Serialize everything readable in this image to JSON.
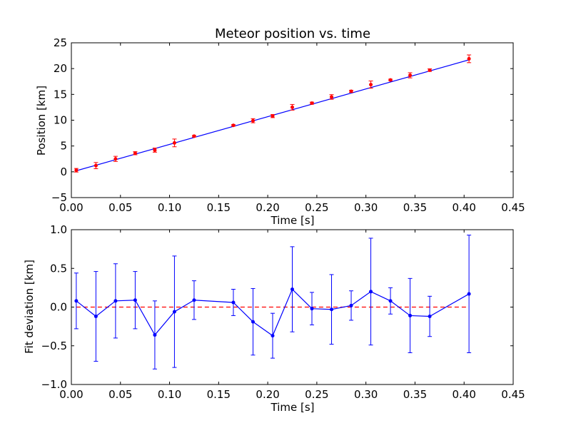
{
  "chart_data": [
    {
      "type": "scatter",
      "title": "Meteor position vs. time",
      "xlabel": "Time [s]",
      "ylabel": "Position [km]",
      "xlim": [
        0.0,
        0.45
      ],
      "ylim": [
        -5,
        25
      ],
      "xticks": [
        "0.00",
        "0.05",
        "0.10",
        "0.15",
        "0.20",
        "0.25",
        "0.30",
        "0.35",
        "0.40",
        "0.45"
      ],
      "yticks": [
        "−5",
        "0",
        "5",
        "10",
        "15",
        "20",
        "25"
      ],
      "grid": false,
      "colors": {
        "points": "#ff0000",
        "errorbars": "#ff0000",
        "fit_line": "#0000ff",
        "frame": "#000000"
      },
      "series": [
        {
          "x": [
            0.005,
            0.025,
            0.045,
            0.065,
            0.085,
            0.105,
            0.125,
            0.165,
            0.185,
            0.205,
            0.225,
            0.245,
            0.265,
            0.285,
            0.305,
            0.325,
            0.345,
            0.365,
            0.405
          ],
          "y": [
            0.3,
            1.2,
            2.5,
            3.6,
            4.2,
            5.6,
            6.9,
            9.0,
            9.9,
            10.8,
            12.5,
            13.3,
            14.5,
            15.6,
            16.9,
            17.8,
            18.7,
            19.7,
            21.9
          ],
          "yerr": [
            0.35,
            0.6,
            0.5,
            0.3,
            0.4,
            0.75,
            0.15,
            0.15,
            0.4,
            0.3,
            0.55,
            0.2,
            0.45,
            0.2,
            0.7,
            0.15,
            0.5,
            0.25,
            0.75
          ]
        }
      ],
      "fit_line": {
        "x": [
          0.005,
          0.405
        ],
        "y": [
          0.2,
          21.7
        ]
      }
    },
    {
      "type": "line",
      "title": "",
      "xlabel": "Time [s]",
      "ylabel": "Fit deviation [km]",
      "xlim": [
        0.0,
        0.45
      ],
      "ylim": [
        -1.0,
        1.0
      ],
      "xticks": [
        "0.00",
        "0.05",
        "0.10",
        "0.15",
        "0.20",
        "0.25",
        "0.30",
        "0.35",
        "0.40",
        "0.45"
      ],
      "yticks": [
        "−1.0",
        "−0.5",
        "0.0",
        "0.5",
        "1.0"
      ],
      "grid": false,
      "colors": {
        "line": "#0000ff",
        "errorbars": "#0000ff",
        "reference": "#ff0000",
        "frame": "#000000"
      },
      "series": [
        {
          "x": [
            0.005,
            0.025,
            0.045,
            0.065,
            0.085,
            0.105,
            0.125,
            0.165,
            0.185,
            0.205,
            0.225,
            0.245,
            0.265,
            0.285,
            0.305,
            0.325,
            0.345,
            0.365,
            0.405
          ],
          "y": [
            0.08,
            -0.12,
            0.08,
            0.09,
            -0.36,
            -0.06,
            0.09,
            0.06,
            -0.19,
            -0.37,
            0.23,
            -0.02,
            -0.03,
            0.02,
            0.2,
            0.08,
            -0.11,
            -0.12,
            0.17
          ],
          "yerr": [
            0.36,
            0.58,
            0.48,
            0.37,
            0.44,
            0.72,
            0.25,
            0.17,
            0.43,
            0.29,
            0.55,
            0.21,
            0.45,
            0.19,
            0.69,
            0.17,
            0.48,
            0.26,
            0.76
          ]
        }
      ],
      "reference_line": {
        "y": 0.0,
        "style": "dashed",
        "x": [
          0.005,
          0.405
        ]
      }
    }
  ]
}
